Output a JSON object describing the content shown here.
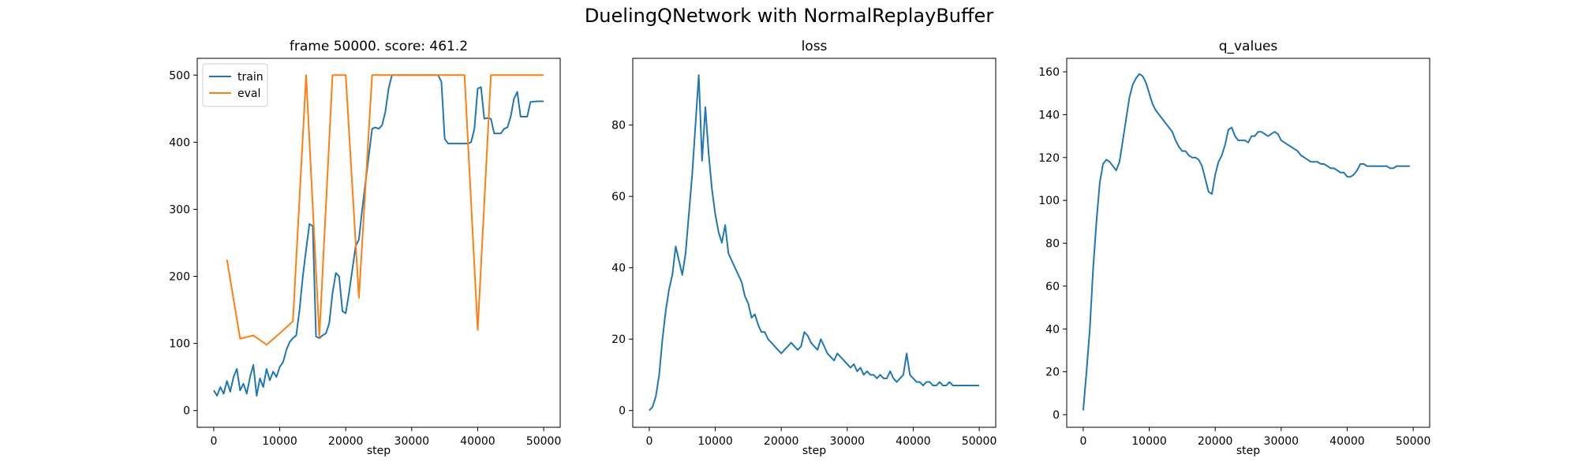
{
  "figure": {
    "suptitle": "DuelingQNetwork with NormalReplayBuffer"
  },
  "chart_data": [
    {
      "type": "line",
      "title": "frame 50000. score: 461.2",
      "xlabel": "step",
      "ylabel": "",
      "xlim": [
        -2500,
        52500
      ],
      "ylim": [
        -25,
        525
      ],
      "xticks": [
        0,
        10000,
        20000,
        30000,
        40000,
        50000
      ],
      "yticks": [
        0,
        100,
        200,
        300,
        400,
        500
      ],
      "legend": "top-left",
      "grid": false,
      "series": [
        {
          "name": "train",
          "color": "#1f77b4",
          "x": [
            0,
            500,
            1000,
            1500,
            2000,
            2500,
            3000,
            3500,
            4000,
            4500,
            5000,
            5500,
            6000,
            6500,
            7000,
            7500,
            8000,
            8500,
            9000,
            9500,
            10000,
            10500,
            11000,
            11500,
            12000,
            12500,
            13000,
            13500,
            14000,
            14500,
            15000,
            15500,
            16000,
            16500,
            17000,
            17500,
            18000,
            18500,
            19000,
            19500,
            20000,
            20500,
            21000,
            21500,
            22000,
            22500,
            23000,
            23500,
            24000,
            24500,
            25000,
            25500,
            26000,
            26500,
            27000,
            27500,
            28000,
            29000,
            30000,
            31000,
            32000,
            33000,
            34000,
            34500,
            35000,
            35500,
            36000,
            37000,
            38000,
            38500,
            39000,
            39500,
            40000,
            40500,
            41000,
            41500,
            42000,
            42500,
            43000,
            43500,
            44000,
            44500,
            45000,
            45500,
            46000,
            46500,
            47000,
            47500,
            48000,
            49000,
            50000
          ],
          "y": [
            30,
            22,
            35,
            25,
            44,
            28,
            50,
            62,
            30,
            40,
            25,
            50,
            68,
            22,
            48,
            35,
            62,
            45,
            58,
            50,
            65,
            72,
            90,
            102,
            108,
            112,
            150,
            200,
            240,
            278,
            275,
            110,
            108,
            112,
            115,
            130,
            175,
            205,
            200,
            148,
            145,
            175,
            210,
            245,
            255,
            300,
            340,
            380,
            420,
            422,
            420,
            425,
            445,
            480,
            500,
            500,
            500,
            500,
            500,
            500,
            500,
            500,
            500,
            490,
            405,
            398,
            398,
            398,
            398,
            398,
            400,
            420,
            480,
            482,
            435,
            436,
            435,
            413,
            413,
            413,
            420,
            422,
            438,
            465,
            475,
            438,
            438,
            438,
            460,
            461,
            461
          ]
        },
        {
          "name": "eval",
          "color": "#ff7f0e",
          "x": [
            2000,
            4000,
            6000,
            8000,
            10000,
            12000,
            14000,
            16000,
            18000,
            20000,
            22000,
            24000,
            26000,
            28000,
            30000,
            32000,
            34000,
            36000,
            38000,
            40000,
            42000,
            44000,
            46000,
            48000,
            50000
          ],
          "y": [
            225,
            107,
            112,
            98,
            115,
            133,
            500,
            110,
            500,
            500,
            168,
            500,
            500,
            500,
            500,
            500,
            500,
            500,
            500,
            120,
            500,
            500,
            500,
            500,
            500
          ]
        }
      ]
    },
    {
      "type": "line",
      "title": "loss",
      "xlabel": "step",
      "ylabel": "",
      "xlim": [
        -2500,
        52500
      ],
      "ylim": [
        -4.7,
        98.7
      ],
      "xticks": [
        0,
        10000,
        20000,
        30000,
        40000,
        50000
      ],
      "yticks": [
        0,
        20,
        40,
        60,
        80
      ],
      "grid": false,
      "series": [
        {
          "color": "#1f77b4",
          "x": [
            0,
            500,
            1000,
            1500,
            2000,
            2500,
            3000,
            3500,
            4000,
            4500,
            5000,
            5500,
            6000,
            6500,
            7000,
            7500,
            8000,
            8500,
            9000,
            9500,
            10000,
            10500,
            11000,
            11500,
            12000,
            12500,
            13000,
            13500,
            14000,
            14500,
            15000,
            15500,
            16000,
            16500,
            17000,
            17500,
            18000,
            18500,
            19000,
            19500,
            20000,
            20500,
            21000,
            21500,
            22000,
            22500,
            23000,
            23500,
            24000,
            24500,
            25000,
            25500,
            26000,
            26500,
            27000,
            27500,
            28000,
            28500,
            29000,
            29500,
            30000,
            30500,
            31000,
            31500,
            32000,
            32500,
            33000,
            33500,
            34000,
            34500,
            35000,
            35500,
            36000,
            36500,
            37000,
            37500,
            38000,
            38500,
            39000,
            39500,
            40000,
            40500,
            41000,
            41500,
            42000,
            42500,
            43000,
            43500,
            44000,
            44500,
            45000,
            45500,
            46000,
            46500,
            47000,
            47500,
            48000,
            48500,
            49000,
            49500,
            50000
          ],
          "y": [
            0,
            1,
            4,
            10,
            20,
            28,
            34,
            38,
            46,
            42,
            38,
            44,
            55,
            66,
            80,
            94,
            70,
            85,
            72,
            62,
            55,
            50,
            47,
            52,
            44,
            42,
            40,
            38,
            36,
            32,
            30,
            26,
            27,
            24,
            22,
            22,
            20,
            19,
            18,
            17,
            16,
            17,
            18,
            19,
            18,
            17,
            18,
            22,
            21,
            19,
            18,
            17,
            20,
            18,
            16,
            15,
            14,
            16,
            15,
            14,
            13,
            12,
            13,
            11,
            12,
            10,
            11,
            10,
            10,
            9,
            10,
            9,
            9,
            11,
            9,
            8,
            9,
            10,
            16,
            10,
            9,
            8,
            8,
            7,
            8,
            8,
            7,
            7,
            8,
            7,
            7,
            8,
            7,
            7,
            7,
            7,
            7,
            7,
            7,
            7,
            7
          ]
        }
      ]
    },
    {
      "type": "line",
      "title": "q_values",
      "xlabel": "step",
      "ylabel": "",
      "xlim": [
        -2500,
        52500
      ],
      "ylim": [
        -5.9,
        166.3
      ],
      "xticks": [
        0,
        10000,
        20000,
        30000,
        40000,
        50000
      ],
      "yticks": [
        0,
        20,
        40,
        60,
        80,
        100,
        120,
        140,
        160
      ],
      "grid": false,
      "series": [
        {
          "color": "#1f77b4",
          "x": [
            0,
            500,
            1000,
            1500,
            2000,
            2500,
            3000,
            3500,
            4000,
            4500,
            5000,
            5500,
            6000,
            6500,
            7000,
            7500,
            8000,
            8500,
            9000,
            9500,
            10000,
            10500,
            11000,
            11500,
            12000,
            12500,
            13000,
            13500,
            14000,
            14500,
            15000,
            15500,
            16000,
            16500,
            17000,
            17500,
            18000,
            18500,
            19000,
            19500,
            20000,
            20500,
            21000,
            21500,
            22000,
            22500,
            23000,
            23500,
            24000,
            24500,
            25000,
            25500,
            26000,
            26500,
            27000,
            27500,
            28000,
            28500,
            29000,
            29500,
            30000,
            30500,
            31000,
            31500,
            32000,
            32500,
            33000,
            33500,
            34000,
            34500,
            35000,
            35500,
            36000,
            36500,
            37000,
            37500,
            38000,
            38500,
            39000,
            39500,
            40000,
            40500,
            41000,
            41500,
            42000,
            42500,
            43000,
            43500,
            44000,
            44500,
            45000,
            45500,
            46000,
            46500,
            47000,
            47500,
            48000,
            48500,
            49000,
            49500
          ],
          "y": [
            2,
            20,
            40,
            68,
            90,
            108,
            117,
            119,
            118,
            116,
            114,
            118,
            128,
            138,
            148,
            154,
            157,
            159,
            158,
            155,
            150,
            145,
            142,
            140,
            138,
            136,
            134,
            132,
            128,
            125,
            123,
            123,
            121,
            120,
            120,
            119,
            116,
            110,
            104,
            103,
            112,
            118,
            121,
            126,
            133,
            134,
            130,
            128,
            128,
            128,
            127,
            130,
            130,
            132,
            132,
            131,
            130,
            131,
            132,
            131,
            128,
            127,
            126,
            125,
            124,
            123,
            121,
            120,
            119,
            118,
            118,
            118,
            117,
            117,
            116,
            115,
            115,
            114,
            113,
            113,
            111,
            111,
            112,
            114,
            117,
            117,
            116,
            116,
            116,
            116,
            116,
            116,
            116,
            115,
            115,
            116,
            116,
            116,
            116,
            116
          ]
        }
      ]
    }
  ]
}
